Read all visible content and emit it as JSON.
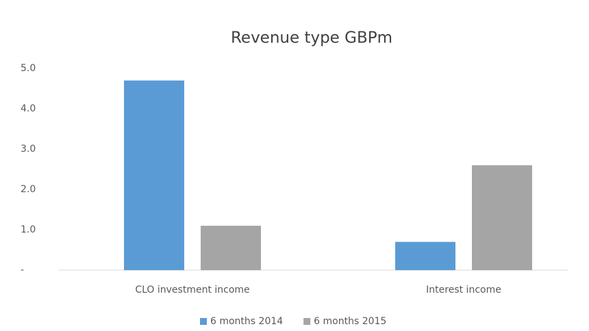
{
  "chart_data": {
    "type": "bar",
    "title": "Revenue type GBPm",
    "categories": [
      "CLO investment income",
      "Interest income"
    ],
    "series": [
      {
        "name": "6 months 2014",
        "color": "#5b9bd5",
        "values": [
          4.7,
          0.7
        ]
      },
      {
        "name": "6 months 2015",
        "color": "#a5a5a5",
        "values": [
          1.1,
          2.6
        ]
      }
    ],
    "ylim": [
      0,
      5
    ],
    "yticks": [
      {
        "value": 0,
        "label": "-"
      },
      {
        "value": 1,
        "label": "1.0"
      },
      {
        "value": 2,
        "label": "2.0"
      },
      {
        "value": 3,
        "label": "3.0"
      },
      {
        "value": 4,
        "label": "4.0"
      },
      {
        "value": 5,
        "label": "5.0"
      }
    ],
    "grid": false,
    "legend": "bottom"
  }
}
